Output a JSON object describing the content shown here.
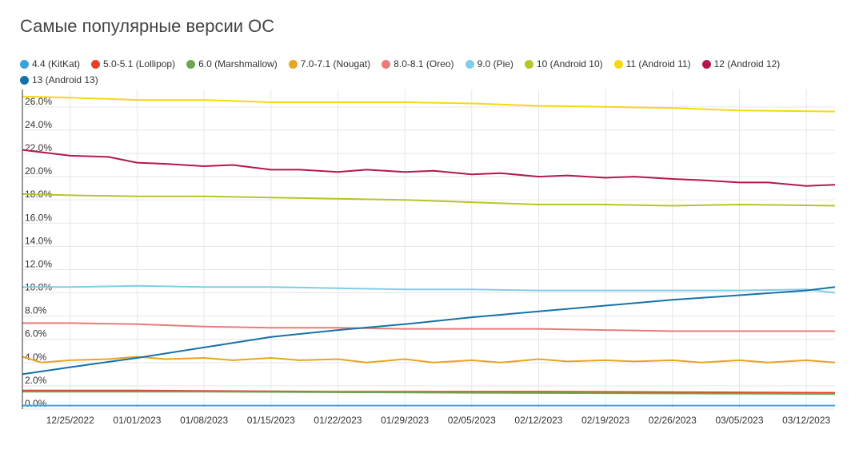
{
  "title": "Самые популярные версии ОС",
  "chart_data": {
    "type": "line",
    "title": "Самые популярные версии ОС",
    "xlabel": "",
    "ylabel": "",
    "ylim": [
      0,
      27.5
    ],
    "x_ticks": [
      "12/25/2022",
      "01/01/2023",
      "01/08/2023",
      "01/15/2023",
      "01/22/2023",
      "01/29/2023",
      "02/05/2023",
      "02/12/2023",
      "02/19/2023",
      "02/26/2023",
      "03/05/2023",
      "03/12/2023"
    ],
    "y_ticks": [
      "0.0%",
      "2.0%",
      "4.0%",
      "6.0%",
      "8.0%",
      "10.0%",
      "12.0%",
      "14.0%",
      "16.0%",
      "18.0%",
      "20.0%",
      "22.0%",
      "24.0%",
      "26.0%"
    ],
    "grid": true,
    "legend_position": "top",
    "x_start": "12/20/2022",
    "x_end": "03/15/2023",
    "series": [
      {
        "name": "4.4 (KitKat)",
        "color": "#3ba3d8",
        "points": [
          [
            "12/20/2022",
            0.3
          ],
          [
            "01/08/2023",
            0.3
          ],
          [
            "02/05/2023",
            0.3
          ],
          [
            "03/15/2023",
            0.3
          ]
        ]
      },
      {
        "name": "5.0-5.1 (Lollipop)",
        "color": "#e8412a",
        "points": [
          [
            "12/20/2022",
            1.6
          ],
          [
            "01/01/2023",
            1.6
          ],
          [
            "01/22/2023",
            1.5
          ],
          [
            "02/12/2023",
            1.5
          ],
          [
            "03/15/2023",
            1.4
          ]
        ]
      },
      {
        "name": "6.0 (Marshmallow)",
        "color": "#6aa84f",
        "points": [
          [
            "12/20/2022",
            1.5
          ],
          [
            "01/08/2023",
            1.5
          ],
          [
            "02/05/2023",
            1.4
          ],
          [
            "03/15/2023",
            1.3
          ]
        ]
      },
      {
        "name": "7.0-7.1 (Nougat)",
        "color": "#e6a522",
        "points": [
          [
            "12/20/2022",
            4.5
          ],
          [
            "12/22/2022",
            4.0
          ],
          [
            "12/25/2022",
            4.2
          ],
          [
            "12/29/2022",
            4.3
          ],
          [
            "01/01/2023",
            4.5
          ],
          [
            "01/04/2023",
            4.3
          ],
          [
            "01/08/2023",
            4.4
          ],
          [
            "01/11/2023",
            4.2
          ],
          [
            "01/15/2023",
            4.4
          ],
          [
            "01/18/2023",
            4.2
          ],
          [
            "01/22/2023",
            4.3
          ],
          [
            "01/25/2023",
            4.0
          ],
          [
            "01/29/2023",
            4.3
          ],
          [
            "02/01/2023",
            4.0
          ],
          [
            "02/05/2023",
            4.2
          ],
          [
            "02/08/2023",
            4.0
          ],
          [
            "02/12/2023",
            4.3
          ],
          [
            "02/15/2023",
            4.1
          ],
          [
            "02/19/2023",
            4.2
          ],
          [
            "02/22/2023",
            4.1
          ],
          [
            "02/26/2023",
            4.2
          ],
          [
            "03/01/2023",
            4.0
          ],
          [
            "03/05/2023",
            4.2
          ],
          [
            "03/08/2023",
            4.0
          ],
          [
            "03/12/2023",
            4.2
          ],
          [
            "03/15/2023",
            4.0
          ]
        ]
      },
      {
        "name": "8.0-8.1 (Oreo)",
        "color": "#ea7a7a",
        "points": [
          [
            "12/20/2022",
            7.4
          ],
          [
            "12/25/2022",
            7.4
          ],
          [
            "01/01/2023",
            7.3
          ],
          [
            "01/08/2023",
            7.1
          ],
          [
            "01/15/2023",
            7.0
          ],
          [
            "01/22/2023",
            7.0
          ],
          [
            "01/29/2023",
            6.9
          ],
          [
            "02/05/2023",
            6.9
          ],
          [
            "02/12/2023",
            6.9
          ],
          [
            "02/19/2023",
            6.8
          ],
          [
            "02/26/2023",
            6.7
          ],
          [
            "03/05/2023",
            6.7
          ],
          [
            "03/15/2023",
            6.7
          ]
        ]
      },
      {
        "name": "9.0 (Pie)",
        "color": "#7fcde8",
        "points": [
          [
            "12/20/2022",
            10.5
          ],
          [
            "12/25/2022",
            10.5
          ],
          [
            "01/01/2023",
            10.6
          ],
          [
            "01/08/2023",
            10.5
          ],
          [
            "01/15/2023",
            10.5
          ],
          [
            "01/22/2023",
            10.4
          ],
          [
            "01/29/2023",
            10.3
          ],
          [
            "02/05/2023",
            10.3
          ],
          [
            "02/12/2023",
            10.2
          ],
          [
            "02/19/2023",
            10.2
          ],
          [
            "02/26/2023",
            10.2
          ],
          [
            "03/05/2023",
            10.2
          ],
          [
            "03/12/2023",
            10.3
          ],
          [
            "03/15/2023",
            10.0
          ]
        ]
      },
      {
        "name": "10 (Android 10)",
        "color": "#b5c62a",
        "points": [
          [
            "12/20/2022",
            18.5
          ],
          [
            "12/25/2022",
            18.4
          ],
          [
            "01/01/2023",
            18.3
          ],
          [
            "01/08/2023",
            18.3
          ],
          [
            "01/15/2023",
            18.2
          ],
          [
            "01/22/2023",
            18.1
          ],
          [
            "01/29/2023",
            18.0
          ],
          [
            "02/05/2023",
            17.8
          ],
          [
            "02/12/2023",
            17.6
          ],
          [
            "02/19/2023",
            17.6
          ],
          [
            "02/26/2023",
            17.5
          ],
          [
            "03/05/2023",
            17.6
          ],
          [
            "03/15/2023",
            17.5
          ]
        ]
      },
      {
        "name": "11 (Android 11)",
        "color": "#f5d90f",
        "points": [
          [
            "12/20/2022",
            26.9
          ],
          [
            "12/25/2022",
            26.8
          ],
          [
            "01/01/2023",
            26.6
          ],
          [
            "01/08/2023",
            26.6
          ],
          [
            "01/15/2023",
            26.4
          ],
          [
            "01/22/2023",
            26.4
          ],
          [
            "01/29/2023",
            26.4
          ],
          [
            "02/05/2023",
            26.3
          ],
          [
            "02/12/2023",
            26.1
          ],
          [
            "02/19/2023",
            26.0
          ],
          [
            "02/26/2023",
            25.9
          ],
          [
            "03/05/2023",
            25.7
          ],
          [
            "03/15/2023",
            25.6
          ]
        ]
      },
      {
        "name": "12 (Android 12)",
        "color": "#b5174d",
        "points": [
          [
            "12/20/2022",
            22.3
          ],
          [
            "12/22/2022",
            22.1
          ],
          [
            "12/25/2022",
            21.8
          ],
          [
            "12/29/2022",
            21.7
          ],
          [
            "01/01/2023",
            21.2
          ],
          [
            "01/04/2023",
            21.1
          ],
          [
            "01/08/2023",
            20.9
          ],
          [
            "01/11/2023",
            21.0
          ],
          [
            "01/15/2023",
            20.6
          ],
          [
            "01/18/2023",
            20.6
          ],
          [
            "01/22/2023",
            20.4
          ],
          [
            "01/25/2023",
            20.6
          ],
          [
            "01/29/2023",
            20.4
          ],
          [
            "02/01/2023",
            20.5
          ],
          [
            "02/05/2023",
            20.2
          ],
          [
            "02/08/2023",
            20.3
          ],
          [
            "02/12/2023",
            20.0
          ],
          [
            "02/15/2023",
            20.1
          ],
          [
            "02/19/2023",
            19.9
          ],
          [
            "02/22/2023",
            20.0
          ],
          [
            "02/26/2023",
            19.8
          ],
          [
            "03/01/2023",
            19.7
          ],
          [
            "03/05/2023",
            19.5
          ],
          [
            "03/08/2023",
            19.5
          ],
          [
            "03/12/2023",
            19.2
          ],
          [
            "03/15/2023",
            19.3
          ]
        ]
      },
      {
        "name": "13 (Android 13)",
        "color": "#1472a8",
        "points": [
          [
            "12/20/2022",
            3.0
          ],
          [
            "12/25/2022",
            3.6
          ],
          [
            "01/01/2023",
            4.4
          ],
          [
            "01/08/2023",
            5.3
          ],
          [
            "01/15/2023",
            6.2
          ],
          [
            "01/22/2023",
            6.8
          ],
          [
            "01/29/2023",
            7.3
          ],
          [
            "02/05/2023",
            7.9
          ],
          [
            "02/12/2023",
            8.4
          ],
          [
            "02/19/2023",
            8.9
          ],
          [
            "02/26/2023",
            9.4
          ],
          [
            "03/05/2023",
            9.8
          ],
          [
            "03/12/2023",
            10.2
          ],
          [
            "03/15/2023",
            10.5
          ]
        ]
      }
    ]
  }
}
